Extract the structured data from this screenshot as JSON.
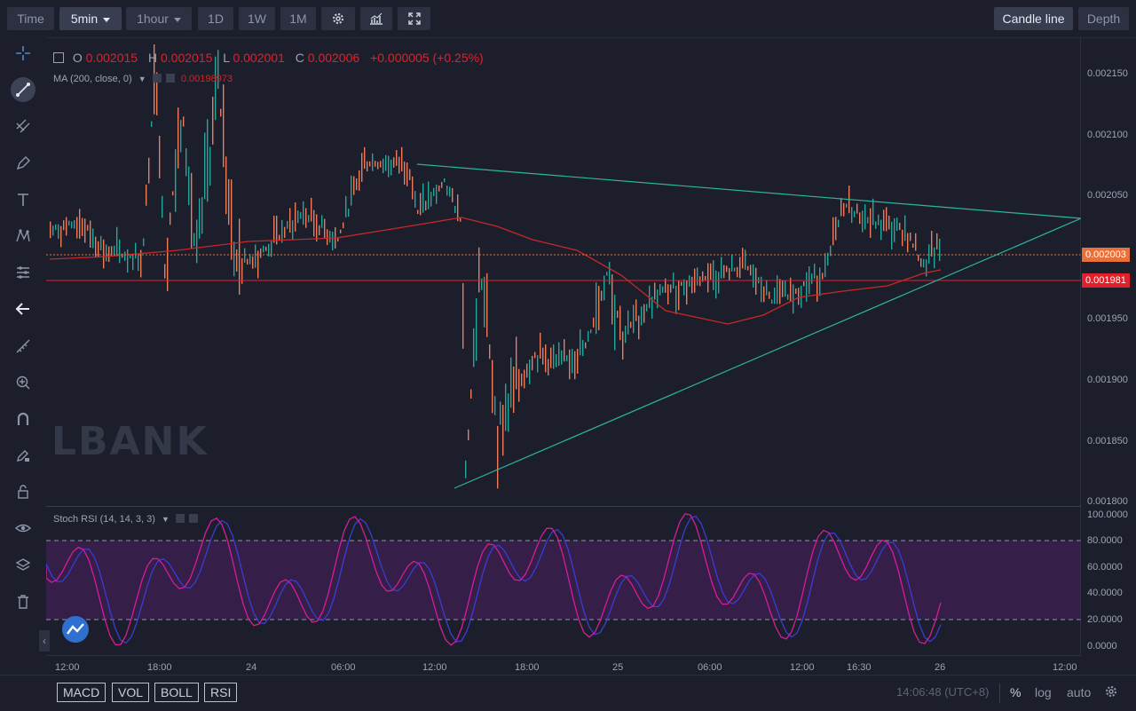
{
  "toolbar": {
    "time_label": "Time",
    "intervals": [
      "5min",
      "1hour",
      "1D",
      "1W",
      "1M"
    ],
    "active_interval": "5min",
    "candle_line_label": "Candle line",
    "depth_label": "Depth"
  },
  "sidebar": {
    "tools": [
      "crosshair-icon",
      "trend-line-icon",
      "multi-line-icon",
      "pen-icon",
      "text-icon",
      "pattern-icon",
      "measure-icon",
      "back-arrow-icon",
      "ruler-icon",
      "zoom-in-icon",
      "magnet-icon",
      "lock-pencil-icon",
      "lock-icon",
      "eye-icon",
      "layers-icon",
      "trash-icon"
    ]
  },
  "legend": {
    "open_label": "O",
    "open": "0.002015",
    "high_label": "H",
    "high": "0.002015",
    "low_label": "L",
    "low": "0.002001",
    "close_label": "C",
    "close": "0.002006",
    "change": "+0.000005 (+0.25%)",
    "ma_label": "MA (200, close, 0)",
    "ma_value": "0.00198973",
    "stoch_label": "Stoch RSI (14, 14, 3, 3)"
  },
  "watermark": "LBANK",
  "price_axis": {
    "ticks": [
      "0.002150",
      "0.002100",
      "0.002050",
      "0.001950",
      "0.001900",
      "0.001850",
      "0.001800"
    ],
    "current_price": "0.002003",
    "line_price": "0.001981"
  },
  "stoch_axis": {
    "ticks": [
      "100.0000",
      "80.0000",
      "60.0000",
      "40.0000",
      "20.0000",
      "0.0000"
    ]
  },
  "time_axis": {
    "ticks": [
      "12:00",
      "18:00",
      "24",
      "06:00",
      "12:00",
      "18:00",
      "25",
      "06:00",
      "12:00",
      "16:30",
      "26",
      "12:00"
    ]
  },
  "bottom": {
    "indicators": [
      "MACD",
      "VOL",
      "BOLL",
      "RSI"
    ],
    "clock": "14:06:48 (UTC+8)",
    "percent_label": "%",
    "log_label": "log",
    "auto_label": "auto"
  },
  "colors": {
    "up": "#26a69a",
    "down": "#ef7a5a",
    "ma": "#c62828",
    "trendline": "#2bb5a0",
    "stoch_k": "#d81b9a",
    "stoch_d": "#3b3bd6",
    "stoch_band": "#3a1f4d",
    "price_tag_orange": "#e8703a",
    "price_tag_red": "#e0202a"
  }
}
